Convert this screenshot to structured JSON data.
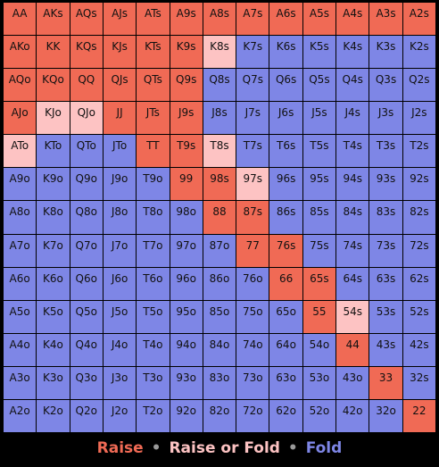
{
  "colors": {
    "raise": "#f06a55",
    "mixed": "#fdc3c3",
    "fold": "#7e86e6"
  },
  "legend": {
    "raise": "Raise",
    "mixed": "Raise or Fold",
    "fold": "Fold",
    "separator": "•"
  },
  "grid": [
    [
      [
        "AA",
        "r"
      ],
      [
        "AKs",
        "r"
      ],
      [
        "AQs",
        "r"
      ],
      [
        "AJs",
        "r"
      ],
      [
        "ATs",
        "r"
      ],
      [
        "A9s",
        "r"
      ],
      [
        "A8s",
        "r"
      ],
      [
        "A7s",
        "r"
      ],
      [
        "A6s",
        "r"
      ],
      [
        "A5s",
        "r"
      ],
      [
        "A4s",
        "r"
      ],
      [
        "A3s",
        "r"
      ],
      [
        "A2s",
        "r"
      ]
    ],
    [
      [
        "AKo",
        "r"
      ],
      [
        "KK",
        "r"
      ],
      [
        "KQs",
        "r"
      ],
      [
        "KJs",
        "r"
      ],
      [
        "KTs",
        "r"
      ],
      [
        "K9s",
        "r"
      ],
      [
        "K8s",
        "m"
      ],
      [
        "K7s",
        "f"
      ],
      [
        "K6s",
        "f"
      ],
      [
        "K5s",
        "f"
      ],
      [
        "K4s",
        "f"
      ],
      [
        "K3s",
        "f"
      ],
      [
        "K2s",
        "f"
      ]
    ],
    [
      [
        "AQo",
        "r"
      ],
      [
        "KQo",
        "r"
      ],
      [
        "QQ",
        "r"
      ],
      [
        "QJs",
        "r"
      ],
      [
        "QTs",
        "r"
      ],
      [
        "Q9s",
        "r"
      ],
      [
        "Q8s",
        "f"
      ],
      [
        "Q7s",
        "f"
      ],
      [
        "Q6s",
        "f"
      ],
      [
        "Q5s",
        "f"
      ],
      [
        "Q4s",
        "f"
      ],
      [
        "Q3s",
        "f"
      ],
      [
        "Q2s",
        "f"
      ]
    ],
    [
      [
        "AJo",
        "r"
      ],
      [
        "KJo",
        "m"
      ],
      [
        "QJo",
        "m"
      ],
      [
        "JJ",
        "r"
      ],
      [
        "JTs",
        "r"
      ],
      [
        "J9s",
        "r"
      ],
      [
        "J8s",
        "f"
      ],
      [
        "J7s",
        "f"
      ],
      [
        "J6s",
        "f"
      ],
      [
        "J5s",
        "f"
      ],
      [
        "J4s",
        "f"
      ],
      [
        "J3s",
        "f"
      ],
      [
        "J2s",
        "f"
      ]
    ],
    [
      [
        "ATo",
        "m"
      ],
      [
        "KTo",
        "f"
      ],
      [
        "QTo",
        "f"
      ],
      [
        "JTo",
        "f"
      ],
      [
        "TT",
        "r"
      ],
      [
        "T9s",
        "r"
      ],
      [
        "T8s",
        "m"
      ],
      [
        "T7s",
        "f"
      ],
      [
        "T6s",
        "f"
      ],
      [
        "T5s",
        "f"
      ],
      [
        "T4s",
        "f"
      ],
      [
        "T3s",
        "f"
      ],
      [
        "T2s",
        "f"
      ]
    ],
    [
      [
        "A9o",
        "f"
      ],
      [
        "K9o",
        "f"
      ],
      [
        "Q9o",
        "f"
      ],
      [
        "J9o",
        "f"
      ],
      [
        "T9o",
        "f"
      ],
      [
        "99",
        "r"
      ],
      [
        "98s",
        "r"
      ],
      [
        "97s",
        "m"
      ],
      [
        "96s",
        "f"
      ],
      [
        "95s",
        "f"
      ],
      [
        "94s",
        "f"
      ],
      [
        "93s",
        "f"
      ],
      [
        "92s",
        "f"
      ]
    ],
    [
      [
        "A8o",
        "f"
      ],
      [
        "K8o",
        "f"
      ],
      [
        "Q8o",
        "f"
      ],
      [
        "J8o",
        "f"
      ],
      [
        "T8o",
        "f"
      ],
      [
        "98o",
        "f"
      ],
      [
        "88",
        "r"
      ],
      [
        "87s",
        "r"
      ],
      [
        "86s",
        "f"
      ],
      [
        "85s",
        "f"
      ],
      [
        "84s",
        "f"
      ],
      [
        "83s",
        "f"
      ],
      [
        "82s",
        "f"
      ]
    ],
    [
      [
        "A7o",
        "f"
      ],
      [
        "K7o",
        "f"
      ],
      [
        "Q7o",
        "f"
      ],
      [
        "J7o",
        "f"
      ],
      [
        "T7o",
        "f"
      ],
      [
        "97o",
        "f"
      ],
      [
        "87o",
        "f"
      ],
      [
        "77",
        "r"
      ],
      [
        "76s",
        "r"
      ],
      [
        "75s",
        "f"
      ],
      [
        "74s",
        "f"
      ],
      [
        "73s",
        "f"
      ],
      [
        "72s",
        "f"
      ]
    ],
    [
      [
        "A6o",
        "f"
      ],
      [
        "K6o",
        "f"
      ],
      [
        "Q6o",
        "f"
      ],
      [
        "J6o",
        "f"
      ],
      [
        "T6o",
        "f"
      ],
      [
        "96o",
        "f"
      ],
      [
        "86o",
        "f"
      ],
      [
        "76o",
        "f"
      ],
      [
        "66",
        "r"
      ],
      [
        "65s",
        "r"
      ],
      [
        "64s",
        "f"
      ],
      [
        "63s",
        "f"
      ],
      [
        "62s",
        "f"
      ]
    ],
    [
      [
        "A5o",
        "f"
      ],
      [
        "K5o",
        "f"
      ],
      [
        "Q5o",
        "f"
      ],
      [
        "J5o",
        "f"
      ],
      [
        "T5o",
        "f"
      ],
      [
        "95o",
        "f"
      ],
      [
        "85o",
        "f"
      ],
      [
        "75o",
        "f"
      ],
      [
        "65o",
        "f"
      ],
      [
        "55",
        "r"
      ],
      [
        "54s",
        "m"
      ],
      [
        "53s",
        "f"
      ],
      [
        "52s",
        "f"
      ]
    ],
    [
      [
        "A4o",
        "f"
      ],
      [
        "K4o",
        "f"
      ],
      [
        "Q4o",
        "f"
      ],
      [
        "J4o",
        "f"
      ],
      [
        "T4o",
        "f"
      ],
      [
        "94o",
        "f"
      ],
      [
        "84o",
        "f"
      ],
      [
        "74o",
        "f"
      ],
      [
        "64o",
        "f"
      ],
      [
        "54o",
        "f"
      ],
      [
        "44",
        "r"
      ],
      [
        "43s",
        "f"
      ],
      [
        "42s",
        "f"
      ]
    ],
    [
      [
        "A3o",
        "f"
      ],
      [
        "K3o",
        "f"
      ],
      [
        "Q3o",
        "f"
      ],
      [
        "J3o",
        "f"
      ],
      [
        "T3o",
        "f"
      ],
      [
        "93o",
        "f"
      ],
      [
        "83o",
        "f"
      ],
      [
        "73o",
        "f"
      ],
      [
        "63o",
        "f"
      ],
      [
        "53o",
        "f"
      ],
      [
        "43o",
        "f"
      ],
      [
        "33",
        "r"
      ],
      [
        "32s",
        "f"
      ]
    ],
    [
      [
        "A2o",
        "f"
      ],
      [
        "K2o",
        "f"
      ],
      [
        "Q2o",
        "f"
      ],
      [
        "J2o",
        "f"
      ],
      [
        "T2o",
        "f"
      ],
      [
        "92o",
        "f"
      ],
      [
        "82o",
        "f"
      ],
      [
        "72o",
        "f"
      ],
      [
        "62o",
        "f"
      ],
      [
        "52o",
        "f"
      ],
      [
        "42o",
        "f"
      ],
      [
        "32o",
        "f"
      ],
      [
        "22",
        "r"
      ]
    ]
  ]
}
